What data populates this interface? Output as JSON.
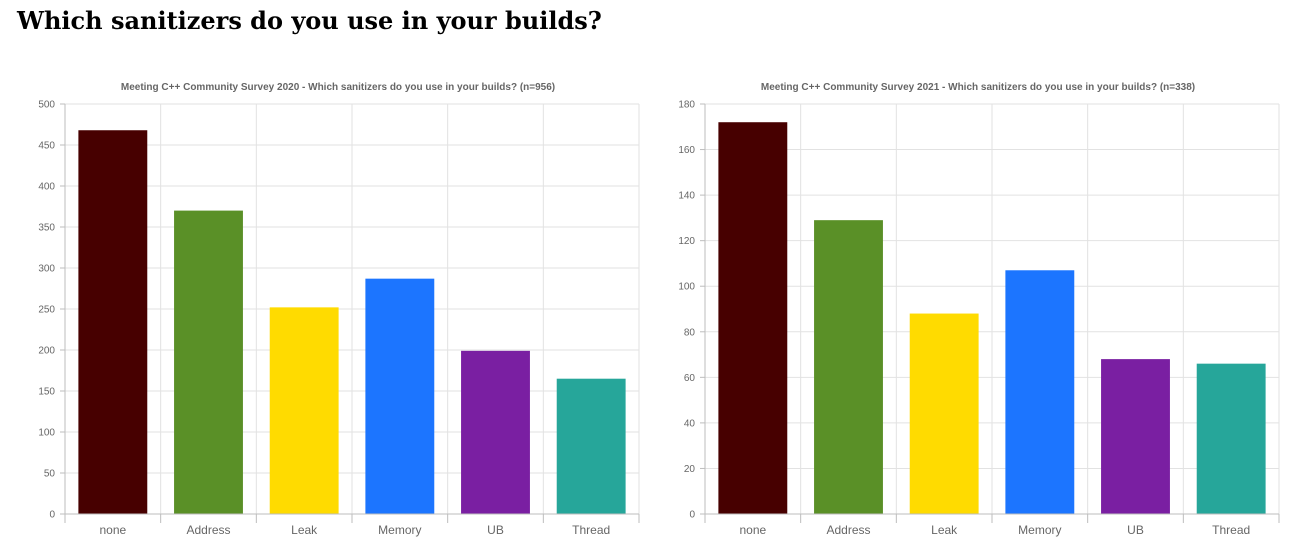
{
  "page": {
    "heading": "Which sanitizers do you use in your builds?"
  },
  "chart_data": [
    {
      "type": "bar",
      "title": "Meeting C++ Community Survey 2020 - Which sanitizers do you use in your builds? (n=956)",
      "categories": [
        "none",
        "Address",
        "Leak",
        "Memory",
        "UB",
        "Thread"
      ],
      "values": [
        468,
        370,
        252,
        287,
        199,
        165
      ],
      "colors": [
        "#470000",
        "#5a9027",
        "#ffdb00",
        "#1c75ff",
        "#7a1fa2",
        "#26a69a"
      ],
      "ylim": [
        0,
        500
      ],
      "yticks": [
        0,
        50,
        100,
        150,
        200,
        250,
        300,
        350,
        400,
        450,
        500
      ],
      "grid": true,
      "legend": "none"
    },
    {
      "type": "bar",
      "title": "Meeting C++ Community Survey 2021  - Which sanitizers do you use in your builds? (n=338)",
      "categories": [
        "none",
        "Address",
        "Leak",
        "Memory",
        "UB",
        "Thread"
      ],
      "values": [
        172,
        129,
        88,
        107,
        68,
        66
      ],
      "colors": [
        "#470000",
        "#5a9027",
        "#ffdb00",
        "#1c75ff",
        "#7a1fa2",
        "#26a69a"
      ],
      "ylim": [
        0,
        180
      ],
      "yticks": [
        0,
        20,
        40,
        60,
        80,
        100,
        120,
        140,
        160,
        180
      ],
      "grid": true,
      "legend": "none"
    }
  ]
}
